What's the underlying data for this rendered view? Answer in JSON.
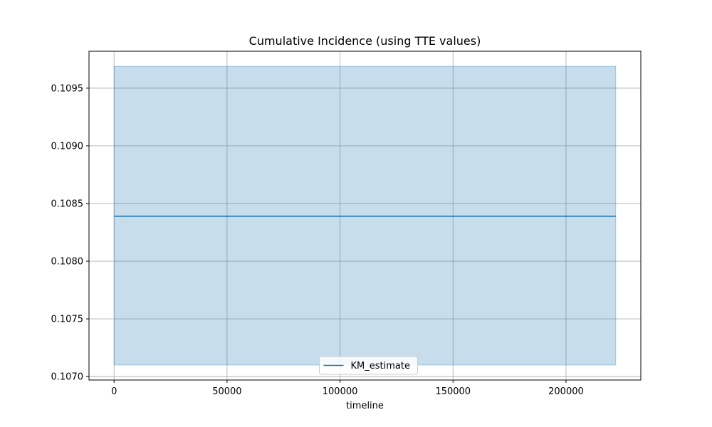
{
  "chart_data": {
    "type": "line",
    "title": "Cumulative Incidence (using TTE values)",
    "xlabel": "timeline",
    "ylabel": "",
    "xlim": [
      -11100,
      233100
    ],
    "ylim": [
      0.10697,
      0.10982
    ],
    "x_ticks": [
      0,
      50000,
      100000,
      150000,
      200000
    ],
    "x_tick_labels": [
      "0",
      "50000",
      "100000",
      "150000",
      "200000"
    ],
    "y_ticks": [
      0.107,
      0.1075,
      0.108,
      0.1085,
      0.109,
      0.1095
    ],
    "y_tick_labels": [
      "0.1070",
      "0.1075",
      "0.1080",
      "0.1085",
      "0.1090",
      "0.1095"
    ],
    "grid": true,
    "legend_position": "lower center",
    "series": [
      {
        "name": "KM_estimate",
        "color": "#1f77b4",
        "x": [
          0,
          222000
        ],
        "y": [
          0.10839,
          0.10839
        ],
        "ci_lower": [
          0.1071,
          0.1071
        ],
        "ci_upper": [
          0.10969,
          0.10969
        ],
        "ci_color": "#1f77b4",
        "ci_opacity": 0.25
      }
    ]
  }
}
